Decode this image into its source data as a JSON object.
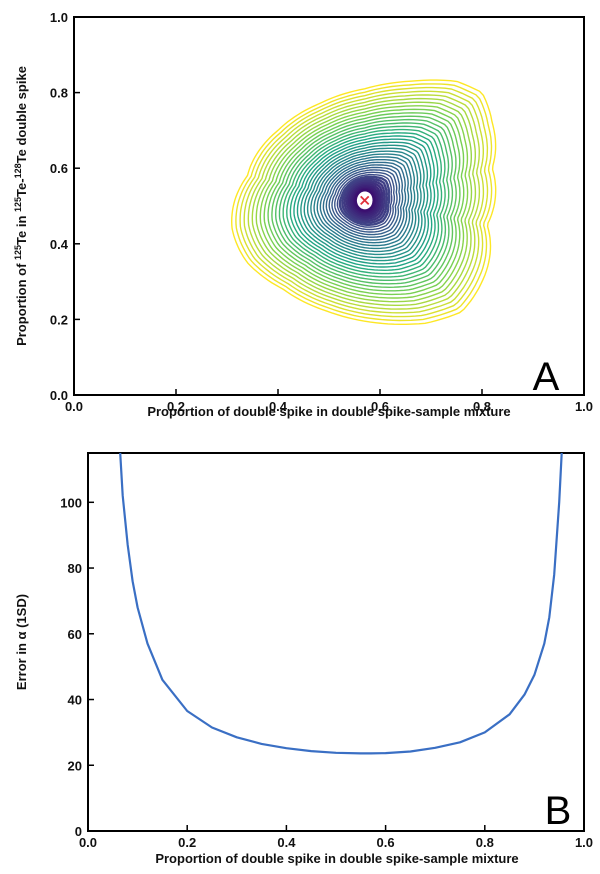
{
  "chart_data": [
    {
      "panel": "A",
      "type": "contour",
      "xlabel": "Proportion of double spike in double spike-sample mixture",
      "ylabel_parts": {
        "pre": "Proportion of ",
        "sup1": "125",
        "mid": "Te in ",
        "sup2": "125",
        "mid2": "Te-",
        "sup3": "128",
        "post": "Te double spike"
      },
      "xlim": [
        0.0,
        1.0
      ],
      "ylim": [
        0.0,
        1.0
      ],
      "xticks": [
        "0.0",
        "0.2",
        "0.4",
        "0.6",
        "0.8",
        "1.0"
      ],
      "yticks": [
        "0.0",
        "0.2",
        "0.4",
        "0.6",
        "0.8",
        "1.0"
      ],
      "optimum": {
        "x": 0.57,
        "y": 0.515,
        "marker": "x",
        "color": "#e0303a"
      },
      "outer_boundary": {
        "x_range": [
          0.31,
          0.82
        ],
        "y_range": [
          0.19,
          0.83
        ]
      },
      "colormap": [
        "#3b0f70",
        "#414487",
        "#2a788e",
        "#22a884",
        "#7ad151",
        "#fde725"
      ],
      "n_contours": 40
    },
    {
      "panel": "B",
      "type": "line",
      "xlabel": "Proportion of double spike in double spike-sample mixture",
      "ylabel": "Error in α (1SD)",
      "xlim": [
        0.0,
        1.0
      ],
      "ylim": [
        0,
        115
      ],
      "xticks": [
        "0.0",
        "0.2",
        "0.4",
        "0.6",
        "0.8",
        "1.0"
      ],
      "yticks": [
        "0",
        "20",
        "40",
        "60",
        "80",
        "100"
      ],
      "series": [
        {
          "color": "#3a6fc4",
          "x": [
            0.065,
            0.07,
            0.08,
            0.09,
            0.1,
            0.12,
            0.15,
            0.2,
            0.25,
            0.3,
            0.35,
            0.4,
            0.45,
            0.5,
            0.55,
            0.57,
            0.6,
            0.65,
            0.7,
            0.75,
            0.8,
            0.85,
            0.88,
            0.9,
            0.92,
            0.93,
            0.94,
            0.95,
            0.955
          ],
          "y": [
            115,
            102,
            87,
            76,
            68,
            57,
            46,
            36.5,
            31.5,
            28.5,
            26.5,
            25.2,
            24.3,
            23.8,
            23.6,
            23.6,
            23.7,
            24.2,
            25.3,
            27.0,
            30.0,
            35.5,
            41.5,
            47.5,
            57.0,
            65.0,
            78.0,
            100.0,
            115.0
          ]
        }
      ]
    }
  ]
}
